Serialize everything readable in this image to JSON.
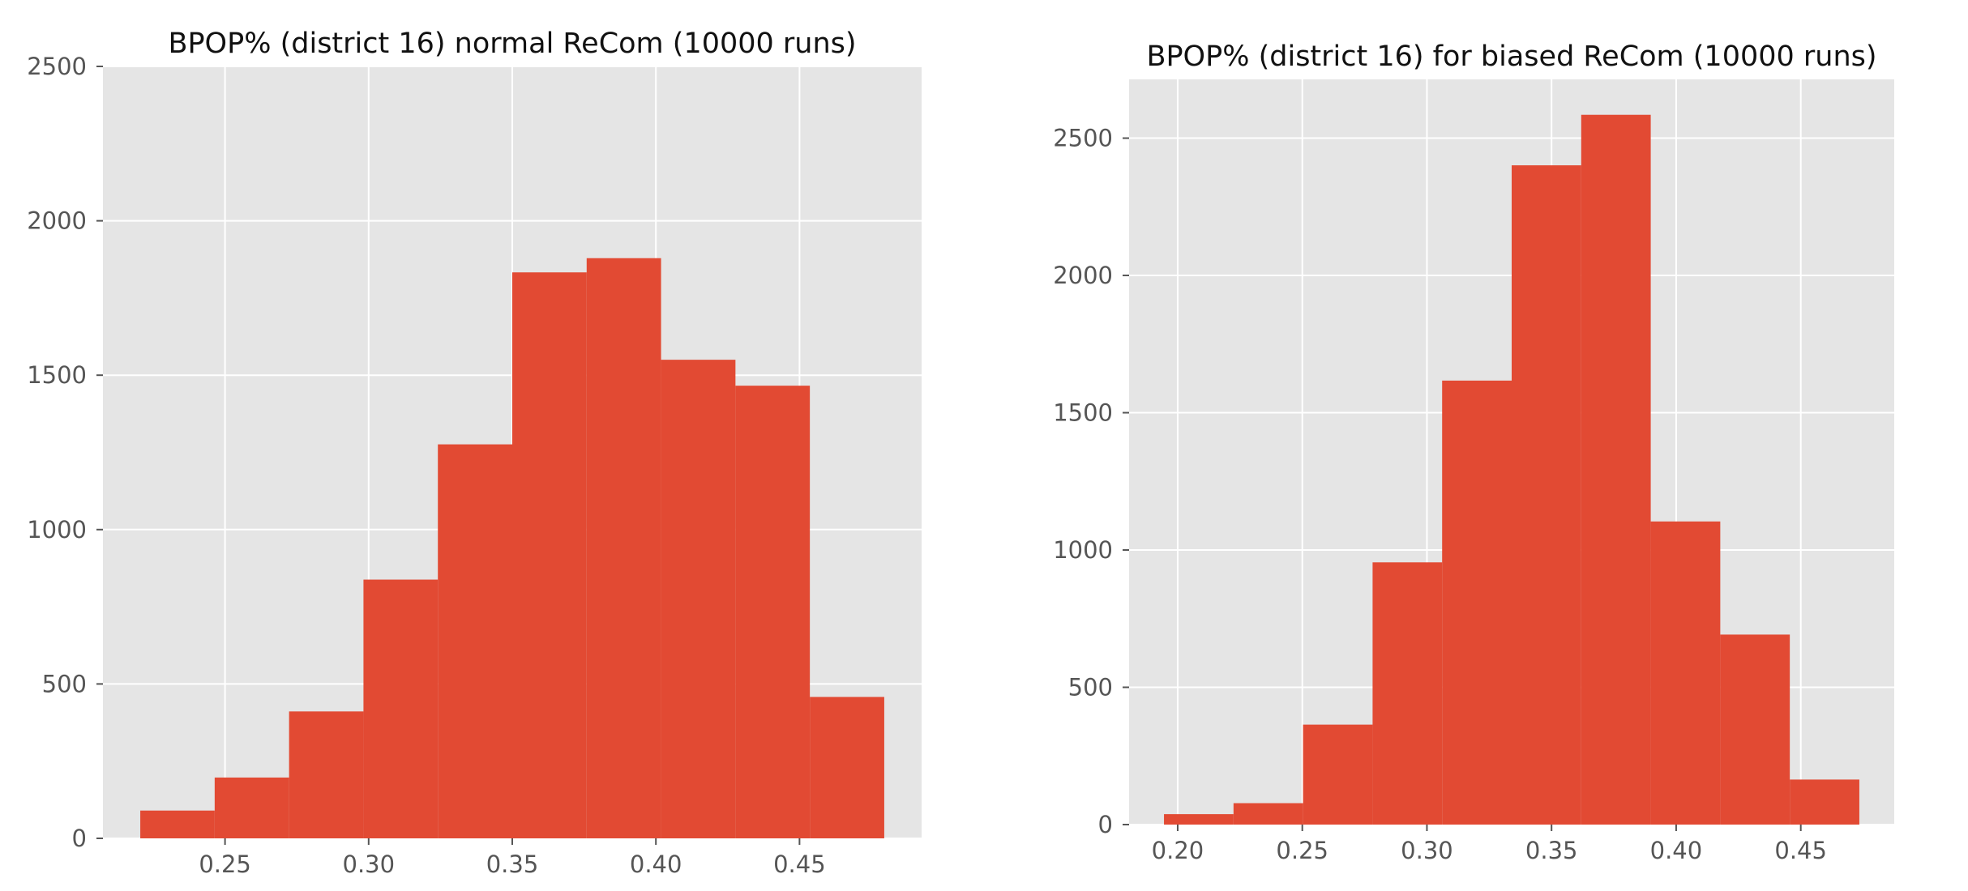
{
  "chart_data": [
    {
      "type": "bar",
      "subtype": "histogram",
      "title": "BPOP% (district 16) normal ReCom (10000 runs)",
      "xlabel": "",
      "ylabel": "",
      "bin_edges": [
        0.2205,
        0.2464,
        0.2723,
        0.2982,
        0.3241,
        0.35,
        0.3759,
        0.4018,
        0.4277,
        0.4536,
        0.4795
      ],
      "values": [
        90,
        197,
        411,
        838,
        1276,
        1833,
        1879,
        1550,
        1466,
        458
      ],
      "xlim": [
        0.2075,
        0.4925
      ],
      "ylim": [
        0,
        2500
      ],
      "xticks": [
        0.25,
        0.3,
        0.35,
        0.4,
        0.45
      ],
      "xtick_labels": [
        "0.25",
        "0.30",
        "0.35",
        "0.40",
        "0.45"
      ],
      "yticks": [
        0,
        500,
        1000,
        1500,
        2000,
        2500
      ],
      "ytick_labels": [
        "0",
        "500",
        "1000",
        "1500",
        "2000",
        "2500"
      ],
      "grid": true,
      "bar_color": "#E24A33",
      "background_color": "#E5E5E5",
      "grid_color": "#FFFFFF"
    },
    {
      "type": "bar",
      "subtype": "histogram",
      "title": "BPOP% (district 16) for biased ReCom (10000 runs)",
      "xlabel": "",
      "ylabel": "",
      "bin_edges": [
        0.1945,
        0.2224,
        0.2503,
        0.2782,
        0.3061,
        0.334,
        0.3619,
        0.3898,
        0.4177,
        0.4456,
        0.4735
      ],
      "values": [
        38,
        78,
        364,
        955,
        1617,
        2401,
        2585,
        1104,
        692,
        164
      ],
      "xlim": [
        0.1805,
        0.4875
      ],
      "ylim": [
        0,
        2714
      ],
      "xticks": [
        0.2,
        0.25,
        0.3,
        0.35,
        0.4,
        0.45
      ],
      "xtick_labels": [
        "0.20",
        "0.25",
        "0.30",
        "0.35",
        "0.40",
        "0.45"
      ],
      "yticks": [
        0,
        500,
        1000,
        1500,
        2000,
        2500
      ],
      "ytick_labels": [
        "0",
        "500",
        "1000",
        "1500",
        "2000",
        "2500"
      ],
      "grid": true,
      "bar_color": "#E24A33",
      "background_color": "#E5E5E5",
      "grid_color": "#FFFFFF"
    }
  ]
}
